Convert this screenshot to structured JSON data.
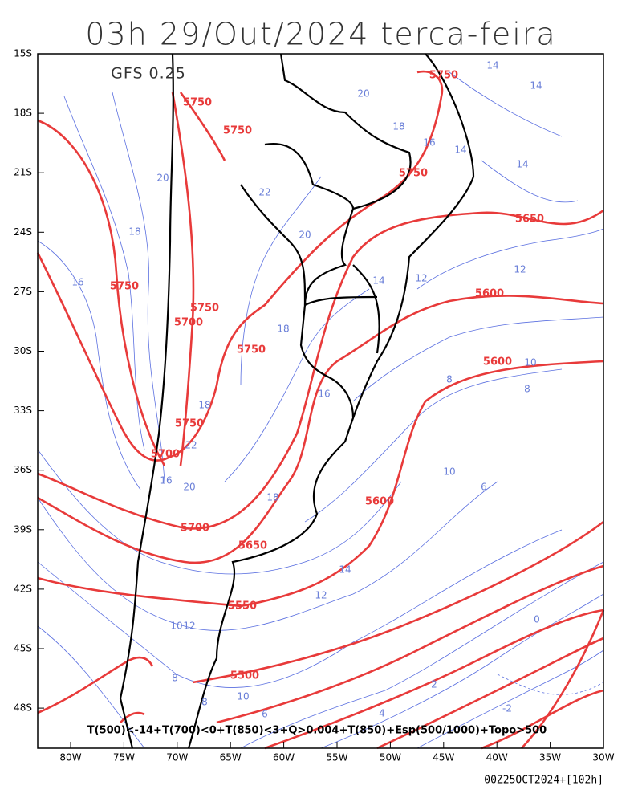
{
  "header": {
    "title": "03h 29/Out/2024 terca-feira"
  },
  "map": {
    "model": "GFS 0.25",
    "lat_labels": [
      "15S",
      "18S",
      "21S",
      "24S",
      "27S",
      "30S",
      "33S",
      "36S",
      "39S",
      "42S",
      "45S",
      "48S"
    ],
    "lon_labels": [
      "80W",
      "75W",
      "70W",
      "65W",
      "60W",
      "55W",
      "50W",
      "45W",
      "40W",
      "35W",
      "30W"
    ],
    "red_contour_labels": [
      "5750",
      "5750",
      "5750",
      "5750",
      "5750",
      "5750",
      "5700",
      "5750",
      "5750",
      "5700",
      "5700",
      "5650",
      "5650",
      "5600",
      "5600",
      "5600",
      "5550",
      "5500"
    ],
    "blue_contour_labels": [
      "14",
      "14",
      "20",
      "18",
      "16",
      "14",
      "14",
      "20",
      "22",
      "20",
      "18",
      "16",
      "14",
      "12",
      "12",
      "10",
      "8",
      "8",
      "18",
      "16",
      "18",
      "20",
      "22",
      "16",
      "18",
      "14",
      "12",
      "10",
      "8",
      "6",
      "4",
      "2",
      "0",
      "-2",
      "10",
      "8",
      "6",
      "10",
      "12"
    ],
    "legend_text": "T(500)<-14+T(700)<0+T(850)<3+Q>0.004+T(850)+Esp(500/1000)+Topo>500",
    "run_info": "00Z25OCT2024+[102h]"
  }
}
